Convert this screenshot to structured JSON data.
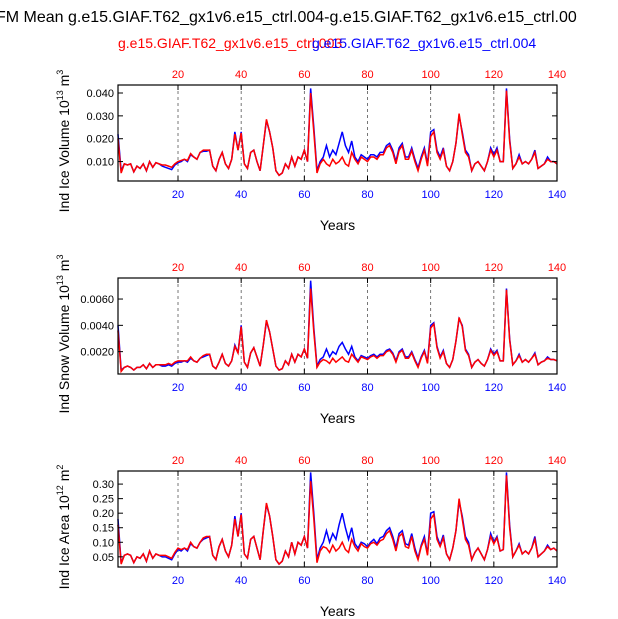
{
  "figure": {
    "title": "FM Mean g.e15.GIAF.T62_gx1v6.e15_ctrl.004-g.e15.GIAF.T62_gx1v6.e15_ctrl.00",
    "legend": [
      {
        "label": "g.e15.GIAF.T62_gx1v6.e15_ctrl.003",
        "color": "#ff0000"
      },
      {
        "label": "g.e15.GIAF.T62_gx1v6.e15_ctrl.004",
        "color": "#0000ff"
      }
    ],
    "bottom_axis_color": "#0000ff",
    "top_axis_color": "#ff0000"
  },
  "chart_data": [
    {
      "type": "line",
      "title": "",
      "xlabel": "Years",
      "ylabel": "Ind Ice Volume 10",
      "ylabel_sup": "13",
      "ylabel_unit": "m",
      "ylabel_unit_sup": "3",
      "xlim": [
        1,
        140
      ],
      "ylim": [
        0.0015,
        0.0435
      ],
      "xticks": [
        20,
        40,
        60,
        80,
        100,
        120,
        140
      ],
      "yticks": [
        0.01,
        0.02,
        0.03,
        0.04
      ],
      "ytick_labels": [
        "0.010",
        "0.020",
        "0.030",
        "0.040"
      ],
      "grid_x": [
        20,
        40,
        60,
        80,
        100,
        120
      ],
      "series": [
        {
          "name": "g.e15.GIAF.T62_gx1v6.e15_ctrl.004",
          "color": "#0000ff",
          "values": [
            0.022,
            0.006,
            0.009,
            0.0085,
            0.009,
            0.0055,
            0.008,
            0.007,
            0.009,
            0.006,
            0.01,
            0.0075,
            0.0095,
            0.009,
            0.008,
            0.0075,
            0.007,
            0.0065,
            0.0085,
            0.0095,
            0.01,
            0.011,
            0.01,
            0.013,
            0.012,
            0.011,
            0.014,
            0.0145,
            0.0145,
            0.015,
            0.008,
            0.006,
            0.011,
            0.014,
            0.009,
            0.007,
            0.011,
            0.023,
            0.015,
            0.023,
            0.009,
            0.007,
            0.014,
            0.015,
            0.01,
            0.006,
            0.017,
            0.028,
            0.023,
            0.016,
            0.006,
            0.004,
            0.005,
            0.009,
            0.007,
            0.012,
            0.008,
            0.012,
            0.011,
            0.015,
            0.01,
            0.042,
            0.025,
            0.006,
            0.01,
            0.012,
            0.017,
            0.012,
            0.015,
            0.013,
            0.018,
            0.023,
            0.017,
            0.014,
            0.019,
            0.012,
            0.01,
            0.013,
            0.012,
            0.011,
            0.013,
            0.013,
            0.012,
            0.014,
            0.014,
            0.017,
            0.018,
            0.015,
            0.01,
            0.016,
            0.018,
            0.012,
            0.012,
            0.016,
            0.011,
            0.007,
            0.012,
            0.016,
            0.009,
            0.023,
            0.024,
            0.015,
            0.012,
            0.016,
            0.008,
            0.006,
            0.01,
            0.018,
            0.03,
            0.023,
            0.015,
            0.013,
            0.006,
            0.009,
            0.01,
            0.008,
            0.006,
            0.01,
            0.016,
            0.013,
            0.016,
            0.01,
            0.01,
            0.042,
            0.02,
            0.007,
            0.009,
            0.013,
            0.009,
            0.01,
            0.009,
            0.011,
            0.015,
            0.007,
            0.008,
            0.009,
            0.012,
            0.01,
            0.01,
            0.009
          ]
        },
        {
          "name": "g.e15.GIAF.T62_gx1v6.e15_ctrl.003",
          "color": "#ff0000",
          "values": [
            0.02,
            0.005,
            0.009,
            0.0085,
            0.009,
            0.0055,
            0.008,
            0.007,
            0.009,
            0.006,
            0.01,
            0.0075,
            0.0095,
            0.009,
            0.0085,
            0.0085,
            0.008,
            0.0075,
            0.009,
            0.01,
            0.0105,
            0.011,
            0.0105,
            0.0135,
            0.012,
            0.011,
            0.014,
            0.015,
            0.015,
            0.015,
            0.008,
            0.006,
            0.011,
            0.014,
            0.009,
            0.007,
            0.011,
            0.022,
            0.015,
            0.0225,
            0.009,
            0.007,
            0.014,
            0.015,
            0.01,
            0.006,
            0.017,
            0.0285,
            0.023,
            0.016,
            0.006,
            0.004,
            0.005,
            0.009,
            0.007,
            0.012,
            0.008,
            0.012,
            0.011,
            0.015,
            0.01,
            0.04,
            0.023,
            0.005,
            0.009,
            0.011,
            0.009,
            0.008,
            0.011,
            0.009,
            0.01,
            0.012,
            0.009,
            0.008,
            0.014,
            0.011,
            0.009,
            0.012,
            0.011,
            0.01,
            0.012,
            0.012,
            0.011,
            0.013,
            0.013,
            0.016,
            0.017,
            0.014,
            0.009,
            0.015,
            0.017,
            0.011,
            0.011,
            0.015,
            0.01,
            0.006,
            0.011,
            0.015,
            0.008,
            0.021,
            0.023,
            0.014,
            0.011,
            0.015,
            0.008,
            0.006,
            0.01,
            0.018,
            0.031,
            0.022,
            0.014,
            0.012,
            0.006,
            0.009,
            0.01,
            0.008,
            0.006,
            0.01,
            0.015,
            0.012,
            0.015,
            0.01,
            0.01,
            0.041,
            0.019,
            0.007,
            0.009,
            0.012,
            0.009,
            0.01,
            0.009,
            0.011,
            0.014,
            0.007,
            0.008,
            0.009,
            0.011,
            0.01,
            0.01,
            0.009
          ]
        }
      ]
    },
    {
      "type": "line",
      "title": "",
      "xlabel": "Years",
      "ylabel": "Ind Snow Volume 10",
      "ylabel_sup": "13",
      "ylabel_unit": "m",
      "ylabel_unit_sup": "3",
      "xlim": [
        1,
        140
      ],
      "ylim": [
        0.0003,
        0.0076
      ],
      "xticks": [
        20,
        40,
        60,
        80,
        100,
        120,
        140
      ],
      "yticks": [
        0.002,
        0.004,
        0.006
      ],
      "ytick_labels": [
        "0.0020",
        "0.0040",
        "0.0060"
      ],
      "grid_x": [
        20,
        40,
        60,
        80,
        100,
        120
      ],
      "series": [
        {
          "name": "g.e15.GIAF.T62_gx1v6.e15_ctrl.004",
          "color": "#0000ff",
          "values": [
            0.004,
            0.0006,
            0.0008,
            0.0009,
            0.0008,
            0.0006,
            0.0008,
            0.0008,
            0.001,
            0.0007,
            0.0011,
            0.0008,
            0.001,
            0.001,
            0.0009,
            0.0009,
            0.001,
            0.0009,
            0.0011,
            0.0012,
            0.0012,
            0.0013,
            0.0012,
            0.0015,
            0.0013,
            0.0012,
            0.0015,
            0.0016,
            0.0017,
            0.0018,
            0.0009,
            0.0007,
            0.0012,
            0.0018,
            0.0011,
            0.0009,
            0.0013,
            0.0025,
            0.0019,
            0.004,
            0.0012,
            0.0008,
            0.0019,
            0.0023,
            0.0016,
            0.0009,
            0.0025,
            0.0043,
            0.0035,
            0.0022,
            0.0009,
            0.0006,
            0.0007,
            0.0013,
            0.001,
            0.0018,
            0.0012,
            0.0018,
            0.0016,
            0.0022,
            0.0015,
            0.0074,
            0.0038,
            0.0009,
            0.0014,
            0.0016,
            0.0022,
            0.0016,
            0.002,
            0.0018,
            0.0024,
            0.0027,
            0.0022,
            0.0018,
            0.0024,
            0.0016,
            0.0013,
            0.0017,
            0.0016,
            0.0015,
            0.0017,
            0.0018,
            0.0016,
            0.0018,
            0.0018,
            0.0021,
            0.0022,
            0.0019,
            0.0013,
            0.002,
            0.0022,
            0.0016,
            0.0016,
            0.002,
            0.0014,
            0.0009,
            0.0016,
            0.0021,
            0.0012,
            0.004,
            0.0042,
            0.0024,
            0.0016,
            0.0021,
            0.0011,
            0.0008,
            0.0014,
            0.0028,
            0.0045,
            0.004,
            0.0022,
            0.0018,
            0.0008,
            0.0012,
            0.0014,
            0.0011,
            0.0009,
            0.0014,
            0.0022,
            0.0018,
            0.0021,
            0.0013,
            0.0013,
            0.0068,
            0.003,
            0.001,
            0.0013,
            0.0018,
            0.0012,
            0.0014,
            0.0012,
            0.0015,
            0.0019,
            0.001,
            0.0012,
            0.0013,
            0.0016,
            0.0014,
            0.0014,
            0.0013
          ]
        },
        {
          "name": "g.e15.GIAF.T62_gx1v6.e15_ctrl.003",
          "color": "#ff0000",
          "values": [
            0.0036,
            0.0005,
            0.0008,
            0.0009,
            0.0008,
            0.0006,
            0.0008,
            0.0008,
            0.001,
            0.0007,
            0.0011,
            0.0008,
            0.001,
            0.001,
            0.001,
            0.001,
            0.0011,
            0.001,
            0.0012,
            0.0013,
            0.0013,
            0.0013,
            0.0013,
            0.0016,
            0.0013,
            0.0012,
            0.0015,
            0.0017,
            0.0018,
            0.0018,
            0.0009,
            0.0007,
            0.0012,
            0.0018,
            0.0011,
            0.0009,
            0.0013,
            0.0024,
            0.0019,
            0.0039,
            0.0012,
            0.0008,
            0.0019,
            0.0023,
            0.0016,
            0.0009,
            0.0025,
            0.0044,
            0.0035,
            0.0022,
            0.0009,
            0.0006,
            0.0007,
            0.0013,
            0.001,
            0.0018,
            0.0012,
            0.0018,
            0.0016,
            0.0022,
            0.0015,
            0.0068,
            0.0035,
            0.0008,
            0.0012,
            0.0014,
            0.0013,
            0.0011,
            0.0015,
            0.0012,
            0.0014,
            0.0016,
            0.0013,
            0.0012,
            0.0018,
            0.0015,
            0.0012,
            0.0016,
            0.0015,
            0.0014,
            0.0016,
            0.0017,
            0.0015,
            0.0017,
            0.0017,
            0.002,
            0.0021,
            0.0018,
            0.0012,
            0.0019,
            0.0021,
            0.0015,
            0.0015,
            0.0019,
            0.0013,
            0.0008,
            0.0015,
            0.002,
            0.0011,
            0.0038,
            0.0041,
            0.0023,
            0.0015,
            0.002,
            0.0011,
            0.0008,
            0.0014,
            0.0028,
            0.0046,
            0.0039,
            0.0021,
            0.0017,
            0.0008,
            0.0012,
            0.0014,
            0.0011,
            0.0009,
            0.0014,
            0.0021,
            0.0017,
            0.002,
            0.0013,
            0.0013,
            0.0067,
            0.0029,
            0.001,
            0.0013,
            0.0017,
            0.0012,
            0.0014,
            0.0012,
            0.0015,
            0.0018,
            0.001,
            0.0012,
            0.0013,
            0.0015,
            0.0014,
            0.0014,
            0.0013
          ]
        }
      ]
    },
    {
      "type": "line",
      "title": "",
      "xlabel": "Years",
      "ylabel": "Ind Ice Area 10",
      "ylabel_sup": "12",
      "ylabel_unit": "m",
      "ylabel_unit_sup": "2",
      "xlim": [
        1,
        140
      ],
      "ylim": [
        0.015,
        0.345
      ],
      "xticks": [
        20,
        40,
        60,
        80,
        100,
        120,
        140
      ],
      "yticks": [
        0.05,
        0.1,
        0.15,
        0.2,
        0.25,
        0.3
      ],
      "ytick_labels": [
        "0.05",
        "0.10",
        "0.15",
        "0.20",
        "0.25",
        "0.30"
      ],
      "grid_x": [
        20,
        40,
        60,
        80,
        100,
        120
      ],
      "series": [
        {
          "name": "g.e15.GIAF.T62_gx1v6.e15_ctrl.004",
          "color": "#0000ff",
          "values": [
            0.18,
            0.03,
            0.055,
            0.06,
            0.055,
            0.03,
            0.05,
            0.045,
            0.06,
            0.035,
            0.07,
            0.045,
            0.06,
            0.055,
            0.05,
            0.05,
            0.045,
            0.04,
            0.06,
            0.075,
            0.07,
            0.08,
            0.07,
            0.095,
            0.085,
            0.08,
            0.1,
            0.11,
            0.115,
            0.12,
            0.055,
            0.04,
            0.085,
            0.11,
            0.07,
            0.05,
            0.09,
            0.19,
            0.12,
            0.2,
            0.06,
            0.045,
            0.11,
            0.12,
            0.08,
            0.04,
            0.14,
            0.23,
            0.19,
            0.12,
            0.04,
            0.025,
            0.035,
            0.07,
            0.05,
            0.1,
            0.06,
            0.1,
            0.09,
            0.12,
            0.08,
            0.34,
            0.2,
            0.04,
            0.08,
            0.1,
            0.14,
            0.1,
            0.13,
            0.11,
            0.16,
            0.2,
            0.15,
            0.11,
            0.15,
            0.095,
            0.08,
            0.1,
            0.095,
            0.085,
            0.1,
            0.11,
            0.095,
            0.115,
            0.12,
            0.14,
            0.15,
            0.12,
            0.08,
            0.13,
            0.14,
            0.095,
            0.09,
            0.13,
            0.08,
            0.045,
            0.09,
            0.12,
            0.06,
            0.2,
            0.205,
            0.12,
            0.09,
            0.125,
            0.06,
            0.04,
            0.08,
            0.14,
            0.24,
            0.19,
            0.12,
            0.1,
            0.04,
            0.065,
            0.08,
            0.06,
            0.04,
            0.075,
            0.13,
            0.1,
            0.12,
            0.07,
            0.075,
            0.34,
            0.16,
            0.05,
            0.07,
            0.095,
            0.06,
            0.07,
            0.06,
            0.08,
            0.12,
            0.05,
            0.06,
            0.07,
            0.09,
            0.075,
            0.08,
            0.07
          ]
        },
        {
          "name": "g.e15.GIAF.T62_gx1v6.e15_ctrl.003",
          "color": "#ff0000",
          "values": [
            0.16,
            0.025,
            0.055,
            0.06,
            0.055,
            0.03,
            0.05,
            0.045,
            0.06,
            0.035,
            0.07,
            0.045,
            0.06,
            0.055,
            0.055,
            0.055,
            0.05,
            0.045,
            0.065,
            0.08,
            0.075,
            0.08,
            0.075,
            0.1,
            0.085,
            0.08,
            0.1,
            0.115,
            0.12,
            0.12,
            0.055,
            0.04,
            0.085,
            0.11,
            0.07,
            0.05,
            0.09,
            0.18,
            0.12,
            0.195,
            0.06,
            0.045,
            0.11,
            0.12,
            0.08,
            0.04,
            0.14,
            0.235,
            0.19,
            0.12,
            0.04,
            0.025,
            0.035,
            0.07,
            0.05,
            0.1,
            0.06,
            0.1,
            0.09,
            0.12,
            0.08,
            0.31,
            0.18,
            0.03,
            0.07,
            0.085,
            0.08,
            0.065,
            0.09,
            0.07,
            0.08,
            0.1,
            0.075,
            0.065,
            0.11,
            0.085,
            0.07,
            0.095,
            0.085,
            0.08,
            0.095,
            0.1,
            0.09,
            0.105,
            0.11,
            0.13,
            0.14,
            0.11,
            0.07,
            0.12,
            0.13,
            0.085,
            0.08,
            0.12,
            0.07,
            0.04,
            0.085,
            0.11,
            0.055,
            0.18,
            0.195,
            0.11,
            0.085,
            0.115,
            0.06,
            0.04,
            0.08,
            0.14,
            0.25,
            0.18,
            0.11,
            0.09,
            0.04,
            0.065,
            0.08,
            0.06,
            0.04,
            0.075,
            0.12,
            0.095,
            0.115,
            0.07,
            0.075,
            0.33,
            0.15,
            0.05,
            0.07,
            0.09,
            0.06,
            0.07,
            0.06,
            0.08,
            0.11,
            0.05,
            0.06,
            0.07,
            0.085,
            0.075,
            0.08,
            0.07
          ]
        }
      ]
    }
  ]
}
